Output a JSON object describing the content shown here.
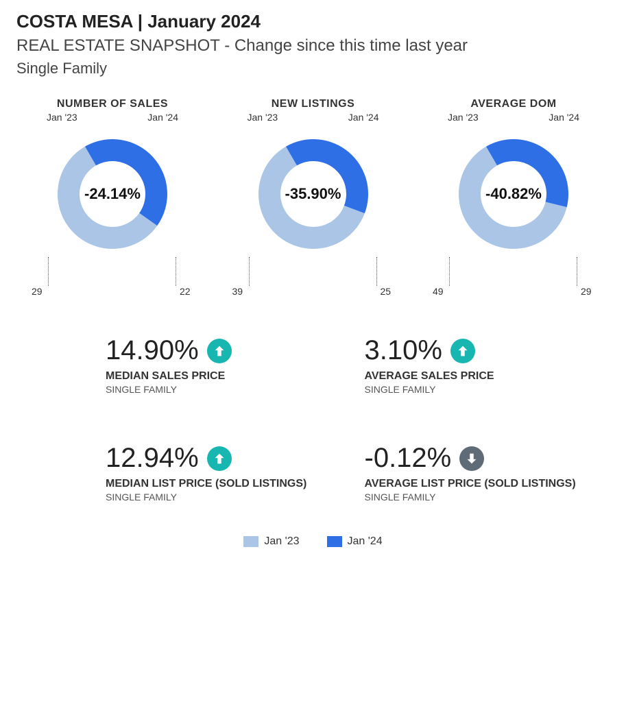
{
  "header": {
    "title": "COSTA MESA | January 2024",
    "subtitle": "REAL ESTATE SNAPSHOT  - Change since this time last year",
    "category": "Single Family"
  },
  "colors": {
    "prior": "#aac5e6",
    "current": "#2f6fe6",
    "up_icon_bg": "#17b6b1",
    "down_icon_bg": "#5f6b76",
    "icon_arrow": "#ffffff",
    "background": "#ffffff",
    "text": "#333333"
  },
  "periods": {
    "prior": "Jan '23",
    "current": "Jan '24"
  },
  "donuts": [
    {
      "title": "NUMBER OF SALES",
      "prior_value": 29,
      "current_value": 22,
      "pct_change": "-24.14%",
      "start_angle_deg": -30
    },
    {
      "title": "NEW LISTINGS",
      "prior_value": 39,
      "current_value": 25,
      "pct_change": "-35.90%",
      "start_angle_deg": -30
    },
    {
      "title": "AVERAGE DOM",
      "prior_value": 49,
      "current_value": 29,
      "pct_change": "-40.82%",
      "start_angle_deg": -30
    }
  ],
  "donut_style": {
    "outer_radius": 80,
    "inner_radius": 48,
    "gap_deg": 0,
    "center_font_size": 22,
    "title_font_size": 16,
    "label_font_size": 14,
    "leader_dot_style": "dotted"
  },
  "stats": [
    {
      "value": "14.90%",
      "direction": "up",
      "label": "MEDIAN SALES PRICE",
      "sublabel": "SINGLE FAMILY"
    },
    {
      "value": "3.10%",
      "direction": "up",
      "label": "AVERAGE SALES PRICE",
      "sublabel": "SINGLE FAMILY"
    },
    {
      "value": "12.94%",
      "direction": "up",
      "label": "MEDIAN LIST PRICE (SOLD LISTINGS)",
      "sublabel": "SINGLE FAMILY"
    },
    {
      "value": "-0.12%",
      "direction": "down",
      "label": "AVERAGE LIST PRICE (SOLD LISTINGS)",
      "sublabel": "SINGLE FAMILY"
    }
  ],
  "legend": [
    {
      "label": "Jan '23",
      "color_key": "prior"
    },
    {
      "label": "Jan '24",
      "color_key": "current"
    }
  ]
}
